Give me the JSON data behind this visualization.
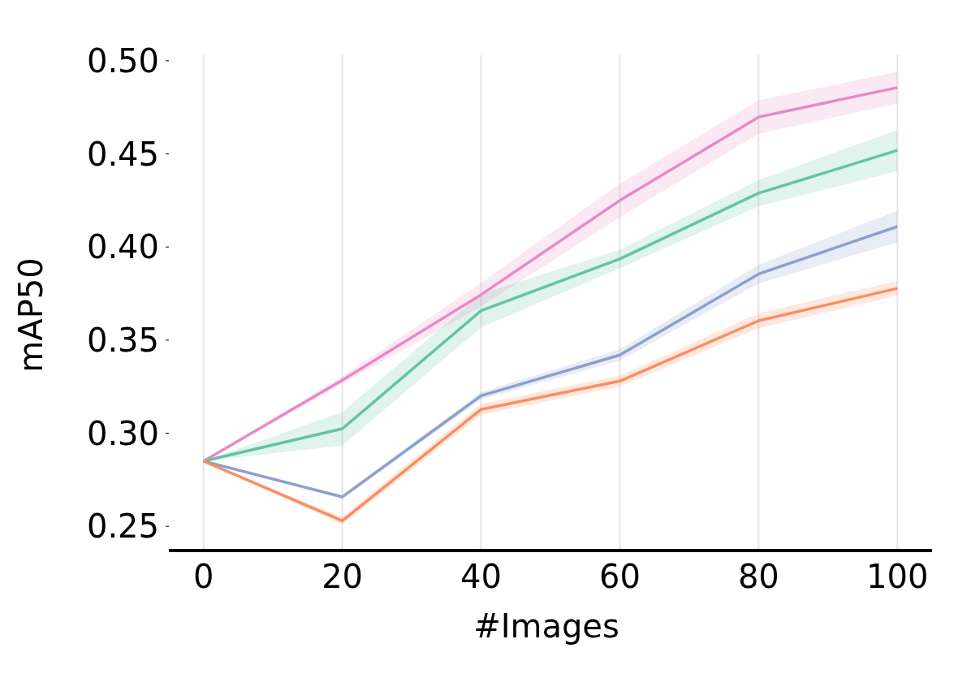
{
  "chart_data": {
    "type": "line",
    "xlabel": "#Images",
    "ylabel": "mAP50",
    "x": [
      0,
      20,
      40,
      60,
      80,
      100
    ],
    "xlim": [
      -5,
      105
    ],
    "xticks": [
      0,
      20,
      40,
      60,
      80,
      100
    ],
    "ylim": [
      0.237,
      0.503
    ],
    "yticks": [
      {
        "value": 0.25,
        "label": "0.25"
      },
      {
        "value": 0.3,
        "label": "0.30"
      },
      {
        "value": 0.35,
        "label": "0.35"
      },
      {
        "value": 0.4,
        "label": "0.40"
      },
      {
        "value": 0.45,
        "label": "0.45"
      },
      {
        "value": 0.5,
        "label": "0.50"
      }
    ],
    "grid": "x",
    "marker": "none",
    "line_style": "solid",
    "series": [
      {
        "color": "#e78ac3",
        "values": [
          0.285,
          0.3285,
          0.3744,
          0.425,
          0.4698,
          0.4856
        ],
        "lower": [
          0.285,
          0.3265,
          0.368,
          0.416,
          0.4608,
          0.4771
        ],
        "upper": [
          0.285,
          0.3305,
          0.3808,
          0.434,
          0.4788,
          0.4941
        ]
      },
      {
        "color": "#66c2a5",
        "values": [
          0.285,
          0.3024,
          0.3658,
          0.3936,
          0.4289,
          0.4519
        ],
        "lower": [
          0.285,
          0.2934,
          0.3568,
          0.3886,
          0.4219,
          0.4409
        ],
        "upper": [
          0.285,
          0.3114,
          0.3748,
          0.3986,
          0.4359,
          0.4629
        ]
      },
      {
        "color": "#8da0cb",
        "values": [
          0.285,
          0.2658,
          0.3201,
          0.342,
          0.3855,
          0.411
        ],
        "lower": [
          0.285,
          0.2648,
          0.3181,
          0.339,
          0.3805,
          0.4025
        ],
        "upper": [
          0.285,
          0.2668,
          0.3221,
          0.345,
          0.3905,
          0.4195
        ]
      },
      {
        "color": "#fc8d62",
        "values": [
          0.285,
          0.253,
          0.3128,
          0.328,
          0.3604,
          0.3778
        ],
        "lower": [
          0.285,
          0.251,
          0.3098,
          0.325,
          0.3564,
          0.3738
        ],
        "upper": [
          0.285,
          0.255,
          0.3158,
          0.331,
          0.3644,
          0.3818
        ]
      }
    ]
  }
}
